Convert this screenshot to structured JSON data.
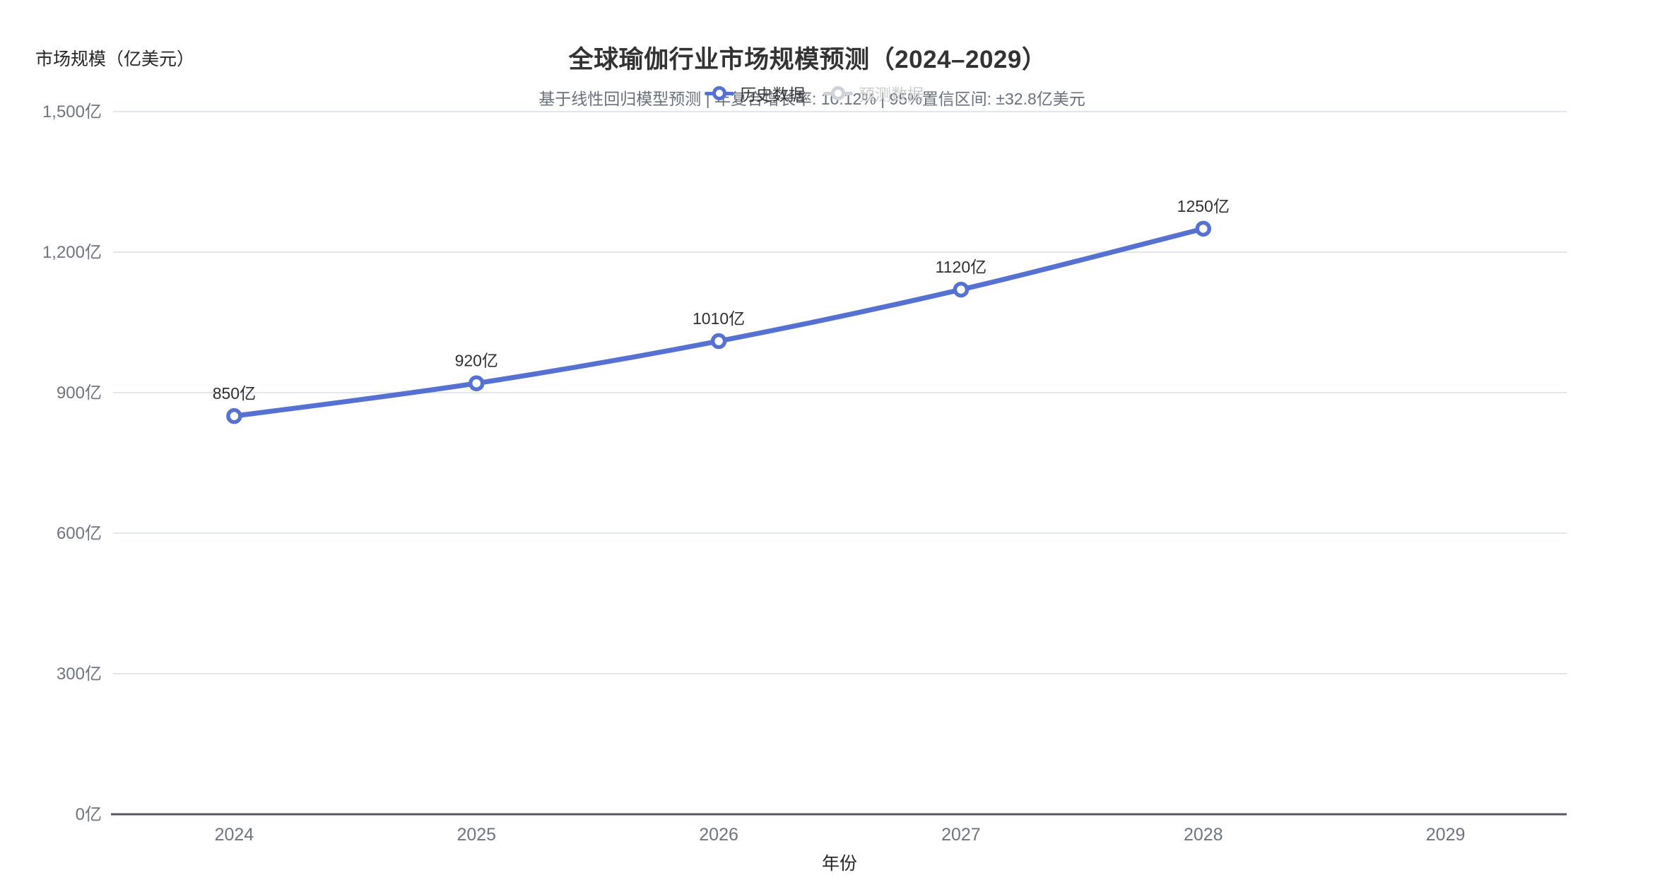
{
  "title": {
    "text": "全球瑜伽行业市场规模预测（2024–2029）",
    "subtitle": "基于线性回归模型预测 | 年复合增长率: 10.12% | 95%置信区间: ±32.8亿美元"
  },
  "legend": {
    "position": "top-center",
    "items": [
      {
        "id": "historical-data",
        "label": "历史数据",
        "color": "#5571d2",
        "text_color": "#333333",
        "active": true
      },
      {
        "id": "forecast-data",
        "label": "预测数据",
        "color": "#cfd2d9",
        "text_color": "#cccccc",
        "active": false
      }
    ]
  },
  "chart_data": {
    "type": "line",
    "title": "全球瑜伽行业市场规模预测（2024–2029）",
    "subtitle": "基于线性回归模型预测 | 年复合增长率: 10.12% | 95%置信区间: ±32.8亿美元",
    "categories": [
      "2024",
      "2025",
      "2026",
      "2027",
      "2028",
      "2029"
    ],
    "series": [
      {
        "name": "历史数据",
        "visible": true,
        "color": "#5571d2",
        "smooth": true,
        "values": [
          850,
          920,
          1010,
          1120,
          1250,
          null
        ],
        "data_labels": [
          "850亿",
          "920亿",
          "1010亿",
          "1120亿",
          "1250亿",
          null
        ]
      },
      {
        "name": "预测数据",
        "visible": false,
        "color": "#cfd2d9",
        "smooth": true,
        "values": [
          null,
          null,
          null,
          null,
          null,
          null
        ],
        "data_labels": [
          null,
          null,
          null,
          null,
          null,
          null
        ]
      }
    ],
    "xlabel": "年份",
    "ylabel": "市场规模（亿美元）",
    "ylim": [
      0,
      1500
    ],
    "y_ticks": [
      {
        "value": 0,
        "label": "0亿"
      },
      {
        "value": 300,
        "label": "300亿"
      },
      {
        "value": 600,
        "label": "600亿"
      },
      {
        "value": 900,
        "label": "900亿"
      },
      {
        "value": 1200,
        "label": "1,200亿"
      },
      {
        "value": 1500,
        "label": "1,500亿"
      }
    ],
    "grid": true,
    "legend_position": "top-center",
    "unit": "亿美元"
  },
  "colors": {
    "accent_line": "#5571d2",
    "inactive": "#cccccc",
    "gridline": "#e1e5ed",
    "axis_line": "#54575e",
    "axis_label": "#6e7480",
    "title": "#333333",
    "subtitle": "#69707c",
    "data_label": "#2f2f2f",
    "background": "#ffffff"
  }
}
